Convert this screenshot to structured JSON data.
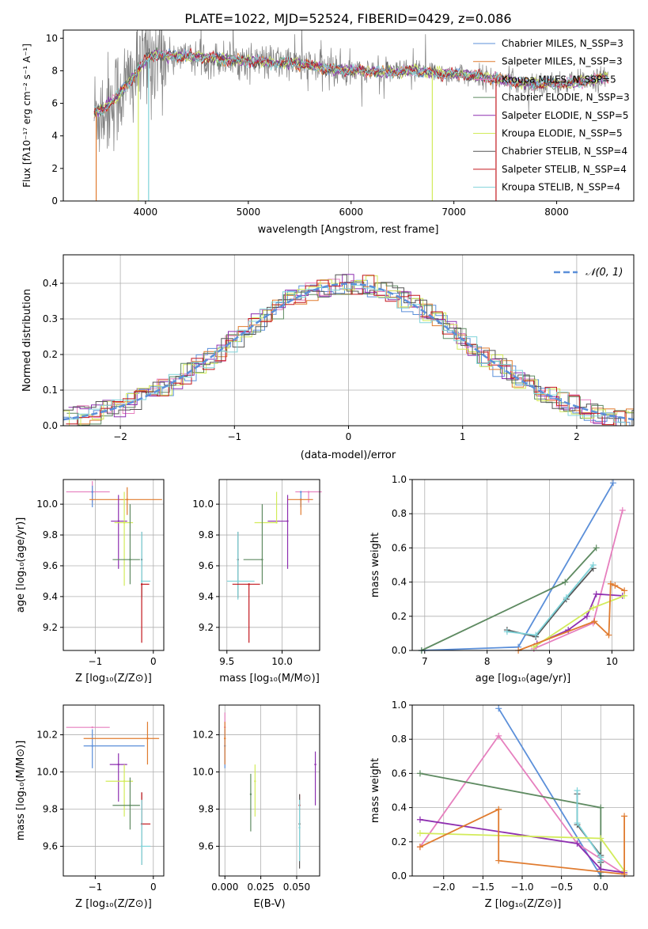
{
  "colors": {
    "chabrier_miles": "#5B8FD9",
    "salpeter_miles": "#E07B2F",
    "kroupa_miles": "#E67FBE",
    "chabrier_elodie": "#5E8A61",
    "salpeter_elodie": "#8E2FB0",
    "kroupa_elodie": "#D2EB5A",
    "chabrier_stelib": "#555555",
    "salpeter_stelib": "#C3171D",
    "kroupa_stelib": "#7FD3D9",
    "data": "#7F7F7F",
    "grid": "#B0B0B0"
  },
  "chart_data": [
    {
      "id": "spectrum",
      "type": "line",
      "title": "PLATE=1022, MJD=52524, FIBERID=0429, z=0.086",
      "xlabel": "wavelength [Angstrom, rest frame]",
      "ylabel": "Flux [fλ10⁻¹⁷ erg cm⁻² s⁻¹ A⁻¹]",
      "xlim": [
        3200,
        8750
      ],
      "ylim": [
        0,
        10.5
      ],
      "xticks": [
        "4000",
        "5000",
        "6000",
        "7000",
        "8000"
      ],
      "yticks": [
        "0",
        "2",
        "4",
        "6",
        "8",
        "10"
      ],
      "grid": false,
      "legend_position": "upper-right",
      "legend": [
        {
          "label": "Chabrier MILES, N_SSP=3",
          "color_key": "chabrier_miles"
        },
        {
          "label": "Salpeter MILES, N_SSP=3",
          "color_key": "salpeter_miles"
        },
        {
          "label": "Kroupa MILES, N_SSP=5",
          "color_key": "kroupa_miles"
        },
        {
          "label": "Chabrier ELODIE, N_SSP=3",
          "color_key": "chabrier_elodie"
        },
        {
          "label": "Salpeter ELODIE, N_SSP=5",
          "color_key": "salpeter_elodie"
        },
        {
          "label": "Kroupa ELODIE, N_SSP=5",
          "color_key": "kroupa_elodie"
        },
        {
          "label": "Chabrier STELIB, N_SSP=4",
          "color_key": "chabrier_stelib"
        },
        {
          "label": "Salpeter STELIB, N_SSP=4",
          "color_key": "salpeter_stelib"
        },
        {
          "label": "Kroupa STELIB, N_SSP=4",
          "color_key": "kroupa_stelib"
        }
      ],
      "continuum": {
        "x": [
          3500,
          3600,
          3700,
          3800,
          3900,
          4000,
          4100,
          4200,
          4400,
          4600,
          4800,
          5000,
          5200,
          5400,
          5600,
          5800,
          6000,
          6200,
          6400,
          6600,
          6800,
          7000,
          7200,
          7400,
          7600,
          7800,
          8000,
          8200,
          8500
        ],
        "y": [
          5.4,
          5.7,
          6.3,
          7.0,
          7.8,
          8.7,
          9.0,
          8.9,
          8.9,
          8.8,
          8.7,
          8.6,
          8.5,
          8.5,
          8.3,
          8.1,
          8.0,
          8.0,
          7.9,
          8.0,
          7.9,
          7.8,
          7.7,
          7.5,
          7.3,
          7.2,
          7.2,
          7.3,
          7.6
        ]
      }
    },
    {
      "id": "residuals",
      "type": "histogram",
      "xlabel": "(data-model)/error",
      "ylabel": "Normed distribution",
      "xlim": [
        -2.5,
        2.5
      ],
      "ylim": [
        0,
        0.48
      ],
      "xticks": [
        "−2",
        "−1",
        "0",
        "1",
        "2"
      ],
      "yticks": [
        "0.0",
        "0.1",
        "0.2",
        "0.3",
        "0.4"
      ],
      "grid": true,
      "legend_position": "upper-right",
      "reference_curve": {
        "label": "𝒩(0, 1)",
        "mean": 0,
        "sigma": 1,
        "color_key": "chabrier_miles",
        "style": "dashed"
      },
      "bin_width": 0.1
    },
    {
      "id": "age_vs_Z",
      "type": "errorbar",
      "xlabel": "Z [log₁₀(Z/Z⊙)]",
      "ylabel": "age  [log₁₀(age/yr)]",
      "xlim": [
        -1.55,
        0.18
      ],
      "ylim": [
        9.05,
        10.16
      ],
      "xticks": [
        "−1",
        "0"
      ],
      "yticks": [
        "9.2",
        "9.4",
        "9.6",
        "9.8",
        "10.0"
      ],
      "xtick_values": [
        -1,
        0
      ],
      "ytick_values": [
        9.2,
        9.4,
        9.6,
        9.8,
        10.0
      ],
      "grid": true,
      "points": [
        {
          "color_key": "kroupa_miles",
          "x": -1.05,
          "xerr": [
            0.45,
            0.3
          ],
          "y": 10.08,
          "yerr": [
            0.07,
            0.07
          ]
        },
        {
          "color_key": "chabrier_miles",
          "x": -1.05,
          "xerr": [
            0.0,
            0.0
          ],
          "y": 10.08,
          "yerr": [
            0.1,
            0.04
          ]
        },
        {
          "color_key": "salpeter_miles",
          "x": -0.45,
          "xerr": [
            0.65,
            0.6
          ],
          "y": 10.03,
          "yerr": [
            0.1,
            0.08
          ]
        },
        {
          "color_key": "salpeter_elodie",
          "x": -0.6,
          "xerr": [
            0.13,
            0.15
          ],
          "y": 9.89,
          "yerr": [
            0.31,
            0.17
          ]
        },
        {
          "color_key": "kroupa_elodie",
          "x": -0.5,
          "xerr": [
            0.17,
            0.15
          ],
          "y": 9.88,
          "yerr": [
            0.41,
            0.2
          ]
        },
        {
          "color_key": "chabrier_elodie",
          "x": -0.4,
          "xerr": [
            0.3,
            0.17
          ],
          "y": 9.64,
          "yerr": [
            0.16,
            0.36
          ]
        },
        {
          "color_key": "chabrier_stelib",
          "x": -0.2,
          "xerr": [
            0.0,
            0.0
          ],
          "y": 9.64,
          "yerr": [
            0.24,
            0.18
          ]
        },
        {
          "color_key": "kroupa_stelib",
          "x": -0.2,
          "xerr": [
            0.0,
            0.15
          ],
          "y": 9.5,
          "yerr": [
            0.12,
            0.32
          ]
        },
        {
          "color_key": "salpeter_stelib",
          "x": -0.2,
          "xerr": [
            0.0,
            0.13
          ],
          "y": 9.48,
          "yerr": [
            0.38,
            0.0
          ]
        }
      ]
    },
    {
      "id": "age_vs_mass",
      "type": "errorbar",
      "xlabel": "mass [log₁₀(M/M⊙)]",
      "ylabel": "",
      "xlim": [
        9.43,
        10.34
      ],
      "ylim": [
        9.05,
        10.16
      ],
      "xticks": [
        "9.5",
        "10.0"
      ],
      "yticks": [
        "9.2",
        "9.4",
        "9.6",
        "9.8",
        "10.0"
      ],
      "xtick_values": [
        9.5,
        10.0
      ],
      "ytick_values": [
        9.2,
        9.4,
        9.6,
        9.8,
        10.0
      ],
      "grid": true,
      "points": [
        {
          "color_key": "kroupa_miles",
          "x": 10.24,
          "xerr": [
            0.12,
            0.12
          ],
          "y": 10.08,
          "yerr": [
            0.07,
            0.0
          ]
        },
        {
          "color_key": "chabrier_miles",
          "x": 10.17,
          "xerr": [
            0.0,
            0.0
          ],
          "y": 10.08,
          "yerr": [
            0.1,
            0.0
          ]
        },
        {
          "color_key": "salpeter_miles",
          "x": 10.17,
          "xerr": [
            0.12,
            0.11
          ],
          "y": 10.03,
          "yerr": [
            0.1,
            0.0
          ]
        },
        {
          "color_key": "salpeter_elodie",
          "x": 10.05,
          "xerr": [
            0.18,
            0.0
          ],
          "y": 9.89,
          "yerr": [
            0.31,
            0.17
          ]
        },
        {
          "color_key": "kroupa_elodie",
          "x": 9.95,
          "xerr": [
            0.2,
            0.0
          ],
          "y": 9.88,
          "yerr": [
            0.0,
            0.2
          ]
        },
        {
          "color_key": "chabrier_elodie",
          "x": 9.82,
          "xerr": [
            0.17,
            0.0
          ],
          "y": 9.64,
          "yerr": [
            0.16,
            0.36
          ]
        },
        {
          "color_key": "chabrier_stelib",
          "x": 9.6,
          "xerr": [
            0.0,
            0.0
          ],
          "y": 9.64,
          "yerr": [
            0.25,
            0.18
          ]
        },
        {
          "color_key": "kroupa_stelib",
          "x": 9.6,
          "xerr": [
            0.1,
            0.15
          ],
          "y": 9.5,
          "yerr": [
            0.12,
            0.32
          ]
        },
        {
          "color_key": "salpeter_stelib",
          "x": 9.7,
          "xerr": [
            0.15,
            0.1
          ],
          "y": 9.48,
          "yerr": [
            0.38,
            0.0
          ]
        }
      ]
    },
    {
      "id": "massweight_vs_age",
      "type": "line",
      "xlabel": "age  [log₁₀(age/yr)]",
      "ylabel": "mass weight",
      "xlim": [
        6.8,
        10.35
      ],
      "ylim": [
        0,
        1.0
      ],
      "xticks": [
        "7",
        "8",
        "9",
        "10"
      ],
      "yticks": [
        "0.0",
        "0.2",
        "0.4",
        "0.6",
        "0.8",
        "1.0"
      ],
      "xtick_values": [
        7,
        8,
        9,
        10
      ],
      "ytick_values": [
        0,
        0.2,
        0.4,
        0.6,
        0.8,
        1.0
      ],
      "grid": true,
      "series": [
        {
          "color_key": "chabrier_miles",
          "x": [
            6.95,
            8.5,
            10.02
          ],
          "y": [
            0.0,
            0.02,
            0.98
          ]
        },
        {
          "color_key": "kroupa_miles",
          "x": [
            8.75,
            9.7,
            10.17
          ],
          "y": [
            0.01,
            0.16,
            0.82
          ]
        },
        {
          "color_key": "chabrier_elodie",
          "x": [
            6.95,
            9.25,
            9.75
          ],
          "y": [
            0.0,
            0.4,
            0.6
          ]
        },
        {
          "color_key": "chabrier_stelib",
          "x": [
            8.32,
            8.78,
            9.27,
            9.7
          ],
          "y": [
            0.12,
            0.08,
            0.3,
            0.48
          ]
        },
        {
          "color_key": "kroupa_stelib",
          "x": [
            8.32,
            8.78,
            9.27,
            9.7
          ],
          "y": [
            0.11,
            0.09,
            0.31,
            0.5
          ]
        },
        {
          "color_key": "salpeter_elodie",
          "x": [
            8.8,
            9.3,
            9.6,
            9.75,
            10.17
          ],
          "y": [
            0.04,
            0.12,
            0.2,
            0.33,
            0.32
          ]
        },
        {
          "color_key": "kroupa_elodie",
          "x": [
            8.75,
            9.7,
            10.2
          ],
          "y": [
            0.02,
            0.25,
            0.32
          ]
        },
        {
          "color_key": "salpeter_miles",
          "x": [
            8.5,
            9.72,
            9.95,
            9.98,
            10.05,
            10.2
          ],
          "y": [
            0.0,
            0.17,
            0.09,
            0.39,
            0.38,
            0.35
          ]
        }
      ]
    },
    {
      "id": "mass_vs_Z",
      "type": "errorbar",
      "xlabel": "Z [log₁₀(Z/Z⊙)]",
      "ylabel": "mass [log₁₀(M/M⊙)]",
      "xlim": [
        -1.55,
        0.18
      ],
      "ylim": [
        9.44,
        10.36
      ],
      "xticks": [
        "−1",
        "0"
      ],
      "yticks": [
        "9.6",
        "9.8",
        "10.0",
        "10.2"
      ],
      "xtick_values": [
        -1,
        0
      ],
      "ytick_values": [
        9.6,
        9.8,
        10.0,
        10.2
      ],
      "grid": true,
      "points": [
        {
          "color_key": "kroupa_miles",
          "x": -1.05,
          "xerr": [
            0.45,
            0.3
          ],
          "y": 10.24,
          "yerr": [
            0.0,
            0.0
          ]
        },
        {
          "color_key": "chabrier_miles",
          "x": -1.05,
          "xerr": [
            0.15,
            0.9
          ],
          "y": 10.14,
          "yerr": [
            0.12,
            0.09
          ]
        },
        {
          "color_key": "salpeter_miles",
          "x": -0.1,
          "xerr": [
            1.1,
            0.2
          ],
          "y": 10.18,
          "yerr": [
            0.14,
            0.09
          ]
        },
        {
          "color_key": "salpeter_elodie",
          "x": -0.6,
          "xerr": [
            0.15,
            0.15
          ],
          "y": 10.04,
          "yerr": [
            0.2,
            0.06
          ]
        },
        {
          "color_key": "kroupa_elodie",
          "x": -0.5,
          "xerr": [
            0.32,
            0.15
          ],
          "y": 9.95,
          "yerr": [
            0.19,
            0.09
          ]
        },
        {
          "color_key": "chabrier_elodie",
          "x": -0.4,
          "xerr": [
            0.3,
            0.17
          ],
          "y": 9.82,
          "yerr": [
            0.13,
            0.15
          ]
        },
        {
          "color_key": "chabrier_stelib",
          "x": -0.2,
          "xerr": [
            0.0,
            0.0
          ],
          "y": 9.72,
          "yerr": [
            0.22,
            0.17
          ]
        },
        {
          "color_key": "salpeter_stelib",
          "x": -0.2,
          "xerr": [
            0.0,
            0.15
          ],
          "y": 9.72,
          "yerr": [
            0.0,
            0.17
          ]
        },
        {
          "color_key": "kroupa_stelib",
          "x": -0.2,
          "xerr": [
            0.0,
            0.15
          ],
          "y": 9.6,
          "yerr": [
            0.1,
            0.25
          ]
        }
      ]
    },
    {
      "id": "mass_vs_ebv",
      "type": "errorbar",
      "xlabel": "E(B-V)",
      "ylabel": "",
      "xlim": [
        -0.004,
        0.066
      ],
      "ylim": [
        9.44,
        10.36
      ],
      "xticks": [
        "0.000",
        "0.025",
        "0.050"
      ],
      "yticks": [
        "9.6",
        "9.8",
        "10.0",
        "10.2"
      ],
      "xtick_values": [
        0,
        0.025,
        0.05
      ],
      "ytick_values": [
        9.6,
        9.8,
        10.0,
        10.2
      ],
      "grid": true,
      "points": [
        {
          "color_key": "kroupa_miles",
          "x": 0.0,
          "xerr": [
            0,
            0
          ],
          "y": 10.24,
          "yerr": [
            0.0,
            0.08
          ]
        },
        {
          "color_key": "chabrier_miles",
          "x": 0.0,
          "xerr": [
            0,
            0
          ],
          "y": 10.14,
          "yerr": [
            0.12,
            0.09
          ]
        },
        {
          "color_key": "salpeter_miles",
          "x": 0.0,
          "xerr": [
            0,
            0
          ],
          "y": 10.18,
          "yerr": [
            0.14,
            0.09
          ]
        },
        {
          "color_key": "salpeter_elodie",
          "x": 0.063,
          "xerr": [
            0,
            0
          ],
          "y": 10.04,
          "yerr": [
            0.22,
            0.07
          ]
        },
        {
          "color_key": "kroupa_elodie",
          "x": 0.021,
          "xerr": [
            0,
            0
          ],
          "y": 9.95,
          "yerr": [
            0.19,
            0.09
          ]
        },
        {
          "color_key": "chabrier_elodie",
          "x": 0.018,
          "xerr": [
            0,
            0
          ],
          "y": 9.88,
          "yerr": [
            0.2,
            0.11
          ]
        },
        {
          "color_key": "salpeter_stelib",
          "x": 0.052,
          "xerr": [
            0,
            0
          ],
          "y": 9.82,
          "yerr": [
            0.0,
            0.06
          ]
        },
        {
          "color_key": "chabrier_stelib",
          "x": 0.052,
          "xerr": [
            0,
            0
          ],
          "y": 9.72,
          "yerr": [
            0.24,
            0.16
          ]
        },
        {
          "color_key": "kroupa_stelib",
          "x": 0.052,
          "xerr": [
            0,
            0
          ],
          "y": 9.7,
          "yerr": [
            0.18,
            0.15
          ]
        }
      ]
    },
    {
      "id": "massweight_vs_Z",
      "type": "line",
      "xlabel": "Z [log₁₀(Z/Z⊙)]",
      "ylabel": "mass weight",
      "xlim": [
        -2.4,
        0.42
      ],
      "ylim": [
        0,
        1.0
      ],
      "xticks": [
        "−2.0",
        "−1.5",
        "−1.0",
        "−0.5",
        "0.0"
      ],
      "yticks": [
        "0.0",
        "0.2",
        "0.4",
        "0.6",
        "0.8",
        "1.0"
      ],
      "xtick_values": [
        -2.0,
        -1.5,
        -1.0,
        -0.5,
        0.0
      ],
      "ytick_values": [
        0,
        0.2,
        0.4,
        0.6,
        0.8,
        1.0
      ],
      "grid": true,
      "series": [
        {
          "color_key": "chabrier_miles",
          "x": [
            -1.3,
            0.0,
            0.0
          ],
          "y": [
            0.98,
            0.0,
            0.02
          ]
        },
        {
          "color_key": "kroupa_miles",
          "x": [
            -2.3,
            -1.3,
            -0.3,
            0.3
          ],
          "y": [
            0.17,
            0.82,
            0.19,
            0.01
          ]
        },
        {
          "color_key": "chabrier_elodie",
          "x": [
            -2.3,
            0.0,
            0.0
          ],
          "y": [
            0.6,
            0.4,
            0.0
          ]
        },
        {
          "color_key": "chabrier_stelib",
          "x": [
            -0.3,
            -0.3,
            0.0,
            0.0
          ],
          "y": [
            0.48,
            0.3,
            0.12,
            0.08
          ]
        },
        {
          "color_key": "kroupa_stelib",
          "x": [
            -0.3,
            -0.3,
            0.0,
            0.0
          ],
          "y": [
            0.5,
            0.31,
            0.11,
            0.09
          ]
        },
        {
          "color_key": "salpeter_elodie",
          "x": [
            -2.3,
            -0.3,
            0.0,
            0.3
          ],
          "y": [
            0.33,
            0.19,
            0.04,
            0.02
          ]
        },
        {
          "color_key": "kroupa_elodie",
          "x": [
            -2.3,
            0.0,
            0.3
          ],
          "y": [
            0.25,
            0.22,
            0.03
          ]
        },
        {
          "color_key": "salpeter_miles",
          "x": [
            -2.3,
            -1.3,
            -1.3,
            0.3,
            0.3
          ],
          "y": [
            0.17,
            0.39,
            0.09,
            0.01,
            0.35
          ]
        }
      ]
    }
  ]
}
